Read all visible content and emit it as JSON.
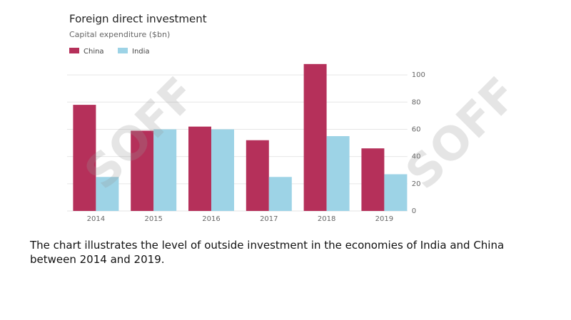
{
  "chart_data": {
    "type": "bar",
    "title": "Foreign direct investment",
    "subtitle": "Capital expenditure ($bn)",
    "categories": [
      "2014",
      "2015",
      "2016",
      "2017",
      "2018",
      "2019"
    ],
    "series": [
      {
        "name": "China",
        "color": "#b5305a",
        "values": [
          78,
          59,
          62,
          52,
          108,
          46
        ]
      },
      {
        "name": "India",
        "color": "#9dd3e6",
        "values": [
          25,
          60,
          60,
          25,
          55,
          27
        ]
      }
    ],
    "ylim": [
      0,
      110
    ],
    "yticks": [
      0,
      20,
      40,
      60,
      80,
      100
    ],
    "grid": true,
    "legend": "top-left",
    "watermark": "SOFF"
  },
  "caption": "The chart illustrates the level of outside investment in the economies of India and China between 2014 and 2019."
}
